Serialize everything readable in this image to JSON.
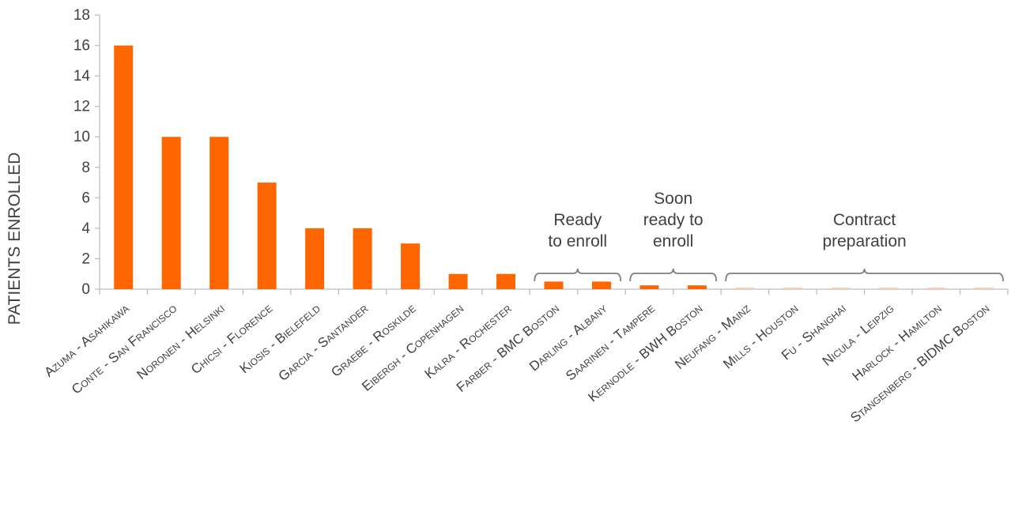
{
  "chart_data": {
    "type": "bar",
    "ylabel": "PATIENTS ENROLLED",
    "xlabel": "",
    "ylim": [
      0,
      18
    ],
    "yticks": [
      0,
      2,
      4,
      6,
      8,
      10,
      12,
      14,
      16,
      18
    ],
    "bar_color": "#FF6600",
    "axis_color": "#BFBFBF",
    "bracket_color": "#7F7F7F",
    "grid": false,
    "categories": [
      "Azuma - Asahikawa",
      "Conte - San Francisco",
      "Noronen - Helsinki",
      "Chicsi - Florence",
      "Kiosis - Bielefeld",
      "Garcia - Santander",
      "Graebe - Roskilde",
      "Eibergh - Copenhagen",
      "Kalra - Rochester",
      "Farber - BMC Boston",
      "Darling - Albany",
      "Saarinen - Tampere",
      "Kernodle - BWH Boston",
      "Neufang - Mainz",
      "Mills - Houston",
      "Fu - Shanghai",
      "Nicula - Leipzig",
      "Harlock - Hamilton",
      "Stangenberg - BIDMC Boston"
    ],
    "values": [
      16,
      10,
      10,
      7,
      4,
      4,
      3,
      1,
      1,
      0.5,
      0.5,
      0.25,
      0.25,
      0.1,
      0.1,
      0.1,
      0.1,
      0.1,
      0.1
    ],
    "bar_colors": [
      "#FF6600",
      "#FF6600",
      "#FF6600",
      "#FF6600",
      "#FF6600",
      "#FF6600",
      "#FF6600",
      "#FF6600",
      "#FF6600",
      "#FF6600",
      "#FF6600",
      "#FF6600",
      "#FF6600",
      "#F8CBAD",
      "#F8CBAD",
      "#F8CBAD",
      "#F8CBAD",
      "#F8CBAD",
      "#F8CBAD"
    ],
    "groups": [
      {
        "label_lines": [
          "Ready",
          "to enroll"
        ],
        "start": 9,
        "end": 10
      },
      {
        "label_lines": [
          "Soon",
          "ready to",
          "enroll"
        ],
        "start": 11,
        "end": 12
      },
      {
        "label_lines": [
          "Contract",
          "preparation"
        ],
        "start": 13,
        "end": 18
      }
    ]
  }
}
